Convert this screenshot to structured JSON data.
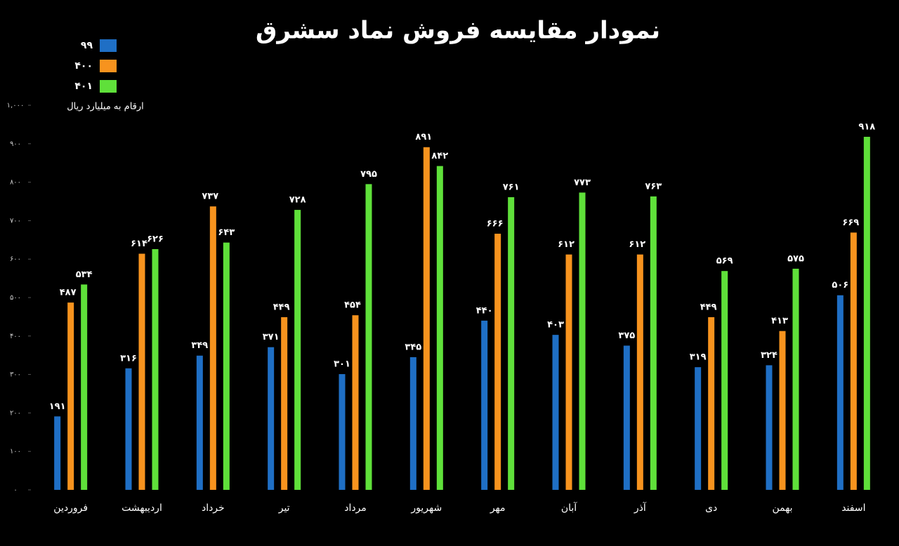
{
  "chart_data": {
    "type": "bar",
    "title": "نمودار مقایسه فروش نماد سشرق",
    "subtitle": "ارقام به میلیارد ریال",
    "categories": [
      "فروردین",
      "اردیبهشت",
      "خرداد",
      "تیر",
      "مرداد",
      "شهریور",
      "مهر",
      "آبان",
      "آذر",
      "دی",
      "بهمن",
      "اسفند"
    ],
    "series": [
      {
        "name": "۹۹",
        "color": "#1f6fc5",
        "values": [
          191,
          316,
          349,
          371,
          301,
          345,
          440,
          403,
          375,
          319,
          324,
          506
        ],
        "value_labels": [
          "۱۹۱",
          "۳۱۶",
          "۳۴۹",
          "۳۷۱",
          "۳۰۱",
          "۳۴۵",
          "۴۴۰",
          "۴۰۳",
          "۳۷۵",
          "۳۱۹",
          "۳۲۴",
          "۵۰۶"
        ]
      },
      {
        "name": "۴۰۰",
        "color": "#f7931e",
        "values": [
          487,
          614,
          737,
          449,
          454,
          891,
          666,
          612,
          612,
          449,
          413,
          669
        ],
        "value_labels": [
          "۴۸۷",
          "۶۱۴",
          "۷۳۷",
          "۴۴۹",
          "۴۵۴",
          "۸۹۱",
          "۶۶۶",
          "۶۱۲",
          "۶۱۲",
          "۴۴۹",
          "۴۱۳",
          "۶۶۹"
        ]
      },
      {
        "name": "۴۰۱",
        "color": "#5fe03a",
        "values": [
          534,
          626,
          643,
          728,
          795,
          842,
          761,
          773,
          763,
          569,
          575,
          918
        ],
        "value_labels": [
          "۵۳۴",
          "۶۲۶",
          "۶۴۳",
          "۷۲۸",
          "۷۹۵",
          "۸۴۲",
          "۷۶۱",
          "۷۷۳",
          "۷۶۳",
          "۵۶۹",
          "۵۷۵",
          "۹۱۸"
        ]
      }
    ],
    "ylim": [
      0,
      1000
    ],
    "yticks": [
      {
        "value": 0,
        "label": "۰"
      },
      {
        "value": 100,
        "label": "۱۰۰"
      },
      {
        "value": 200,
        "label": "۲۰۰"
      },
      {
        "value": 300,
        "label": "۳۰۰"
      },
      {
        "value": 400,
        "label": "۴۰۰"
      },
      {
        "value": 500,
        "label": "۵۰۰"
      },
      {
        "value": 600,
        "label": "۶۰۰"
      },
      {
        "value": 700,
        "label": "۷۰۰"
      },
      {
        "value": 800,
        "label": "۸۰۰"
      },
      {
        "value": 900,
        "label": "۹۰۰"
      },
      {
        "value": 1000,
        "label": "۱,۰۰۰"
      }
    ],
    "legend": "top-left"
  }
}
